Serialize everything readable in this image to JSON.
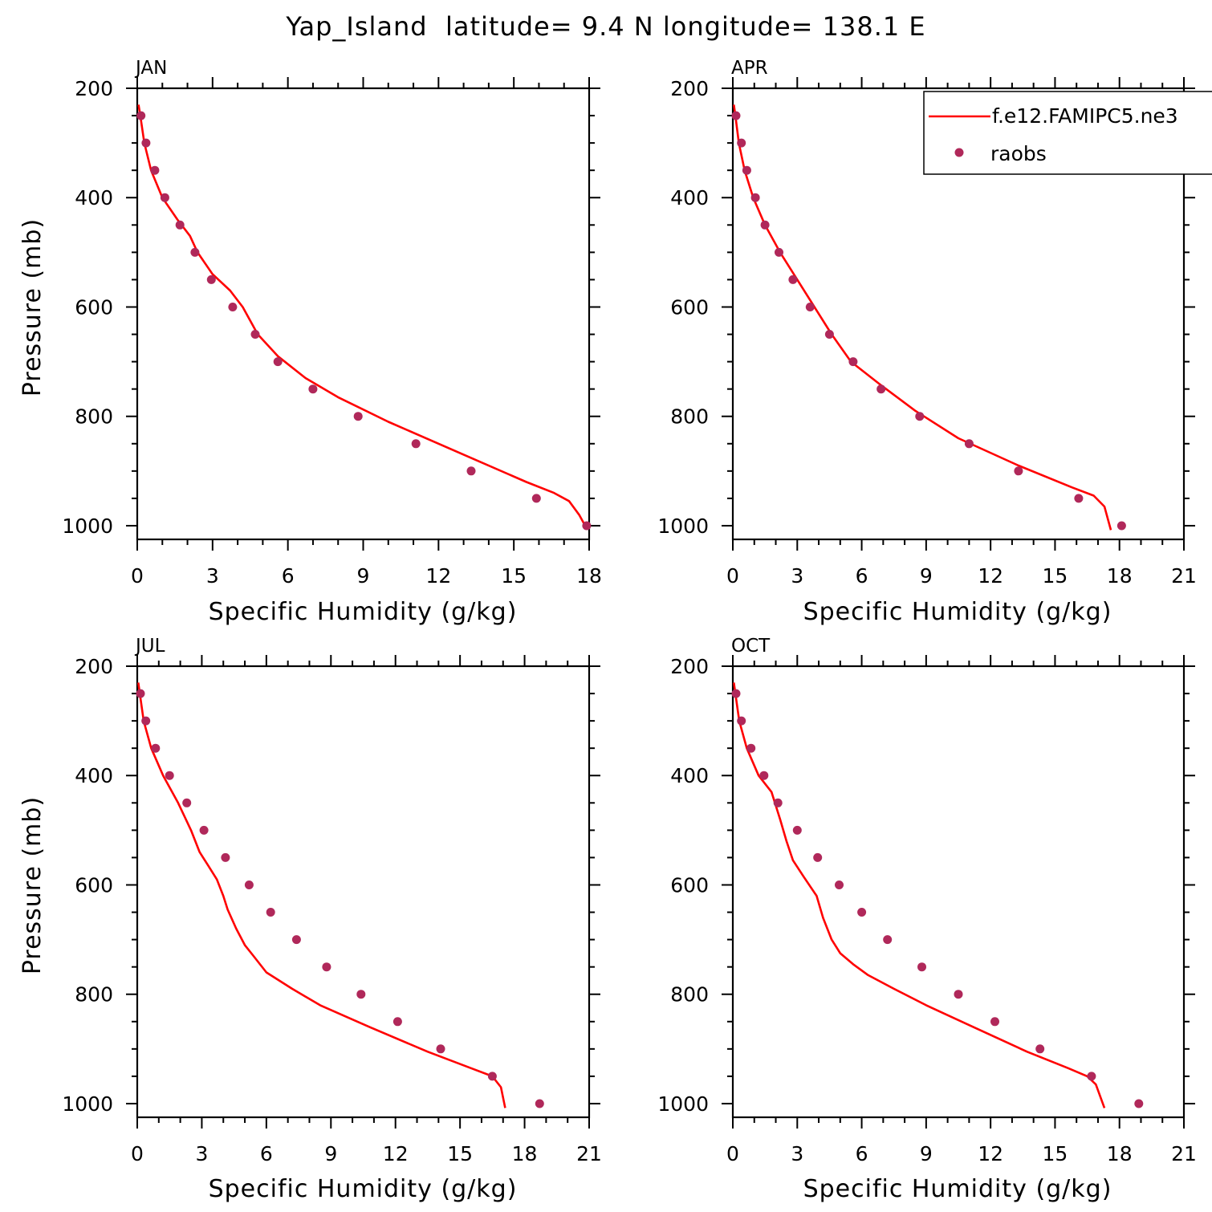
{
  "figure_title": "Yap_Island  latitude= 9.4 N longitude= 138.1 E",
  "legend": {
    "model_label": "f.e12.FAMIPC5.ne3",
    "obs_label": "raobs"
  },
  "colors": {
    "model": "#ff0000",
    "obs": "#b0285a"
  },
  "chart_data": [
    {
      "type": "line",
      "title": "JAN",
      "xlabel": "Specific Humidity (g/kg)",
      "ylabel": "Pressure (mb)",
      "xlim": [
        0,
        18
      ],
      "xticks": [
        0,
        3,
        6,
        9,
        12,
        15,
        18
      ],
      "ylim": [
        1025,
        200
      ],
      "yticks": [
        200,
        400,
        600,
        800,
        1000
      ],
      "series": [
        {
          "name": "f.e12.FAMIPC5.ne3",
          "x": [
            0.05,
            0.12,
            0.28,
            0.55,
            1.0,
            1.6,
            2.1,
            2.4,
            3.0,
            3.7,
            4.2,
            4.8,
            5.6,
            6.7,
            8.0,
            10.0,
            13.0,
            15.5,
            16.6,
            17.2,
            17.6,
            17.9
          ],
          "y": [
            230,
            250,
            300,
            350,
            400,
            440,
            470,
            500,
            540,
            570,
            600,
            650,
            690,
            730,
            765,
            810,
            870,
            920,
            940,
            955,
            980,
            1005
          ]
        },
        {
          "name": "raobs",
          "x": [
            0.15,
            0.35,
            0.7,
            1.1,
            1.7,
            2.3,
            2.95,
            3.8,
            4.7,
            5.6,
            7.0,
            8.8,
            11.1,
            13.3,
            15.9,
            17.9
          ],
          "y": [
            250,
            300,
            350,
            400,
            450,
            500,
            550,
            600,
            650,
            700,
            750,
            800,
            850,
            900,
            950,
            1000
          ]
        }
      ]
    },
    {
      "type": "line",
      "title": "APR",
      "xlabel": "Specific Humidity (g/kg)",
      "ylabel": "",
      "xlim": [
        0,
        21
      ],
      "xticks": [
        0,
        3,
        6,
        9,
        12,
        15,
        18,
        21
      ],
      "ylim": [
        1025,
        200
      ],
      "yticks": [
        200,
        400,
        600,
        800,
        1000
      ],
      "series": [
        {
          "name": "f.e12.FAMIPC5.ne3",
          "x": [
            0.05,
            0.12,
            0.28,
            0.55,
            0.95,
            1.5,
            2.2,
            3.0,
            3.8,
            4.6,
            5.5,
            6.8,
            8.5,
            10.5,
            13.3,
            15.8,
            16.8,
            17.3,
            17.6
          ],
          "y": [
            230,
            250,
            300,
            350,
            400,
            450,
            500,
            550,
            600,
            650,
            700,
            740,
            790,
            840,
            890,
            930,
            945,
            965,
            1008
          ]
        },
        {
          "name": "raobs",
          "x": [
            0.15,
            0.4,
            0.65,
            1.05,
            1.5,
            2.15,
            2.8,
            3.6,
            4.5,
            5.6,
            6.9,
            8.7,
            11.0,
            13.3,
            16.1,
            18.1
          ],
          "y": [
            250,
            300,
            350,
            400,
            450,
            500,
            550,
            600,
            650,
            700,
            750,
            800,
            850,
            900,
            950,
            1000
          ]
        }
      ]
    },
    {
      "type": "line",
      "title": "JUL",
      "xlabel": "Specific Humidity (g/kg)",
      "ylabel": "Pressure (mb)",
      "xlim": [
        0,
        21
      ],
      "xticks": [
        0,
        3,
        6,
        9,
        12,
        15,
        18,
        21
      ],
      "ylim": [
        1025,
        200
      ],
      "yticks": [
        200,
        400,
        600,
        800,
        1000
      ],
      "series": [
        {
          "name": "f.e12.FAMIPC5.ne3",
          "x": [
            0.05,
            0.12,
            0.3,
            0.65,
            1.2,
            1.9,
            2.5,
            2.9,
            3.3,
            3.7,
            4.0,
            4.2,
            4.6,
            5.0,
            5.4,
            6.0,
            7.2,
            8.5,
            10.8,
            13.5,
            15.5,
            16.5,
            16.9,
            17.1
          ],
          "y": [
            230,
            250,
            300,
            350,
            400,
            450,
            500,
            540,
            565,
            590,
            620,
            645,
            680,
            710,
            730,
            760,
            790,
            820,
            860,
            905,
            935,
            950,
            970,
            1008
          ]
        },
        {
          "name": "raobs",
          "x": [
            0.15,
            0.4,
            0.85,
            1.5,
            2.3,
            3.1,
            4.1,
            5.2,
            6.2,
            7.4,
            8.8,
            10.4,
            12.1,
            14.1,
            16.5,
            18.7
          ],
          "y": [
            250,
            300,
            350,
            400,
            450,
            500,
            550,
            600,
            650,
            700,
            750,
            800,
            850,
            900,
            950,
            1000
          ]
        }
      ]
    },
    {
      "type": "line",
      "title": "OCT",
      "xlabel": "Specific Humidity (g/kg)",
      "ylabel": "",
      "xlim": [
        0,
        21
      ],
      "xticks": [
        0,
        3,
        6,
        9,
        12,
        15,
        18,
        21
      ],
      "ylim": [
        1025,
        200
      ],
      "yticks": [
        200,
        400,
        600,
        800,
        1000
      ],
      "series": [
        {
          "name": "f.e12.FAMIPC5.ne3",
          "x": [
            0.05,
            0.12,
            0.3,
            0.65,
            1.2,
            1.8,
            2.2,
            2.5,
            2.8,
            3.3,
            3.9,
            4.2,
            4.6,
            5.0,
            5.6,
            6.3,
            7.5,
            9.0,
            11.2,
            13.7,
            15.6,
            16.5,
            16.9,
            17.3
          ],
          "y": [
            230,
            250,
            300,
            350,
            400,
            430,
            480,
            520,
            555,
            585,
            620,
            660,
            700,
            725,
            745,
            765,
            790,
            820,
            860,
            905,
            935,
            950,
            965,
            1008
          ]
        },
        {
          "name": "raobs",
          "x": [
            0.15,
            0.4,
            0.85,
            1.45,
            2.1,
            3.0,
            3.95,
            4.95,
            6.0,
            7.2,
            8.8,
            10.5,
            12.2,
            14.3,
            16.7,
            18.9
          ],
          "y": [
            250,
            300,
            350,
            400,
            450,
            500,
            550,
            600,
            650,
            700,
            750,
            800,
            850,
            900,
            950,
            1000
          ]
        }
      ]
    }
  ]
}
